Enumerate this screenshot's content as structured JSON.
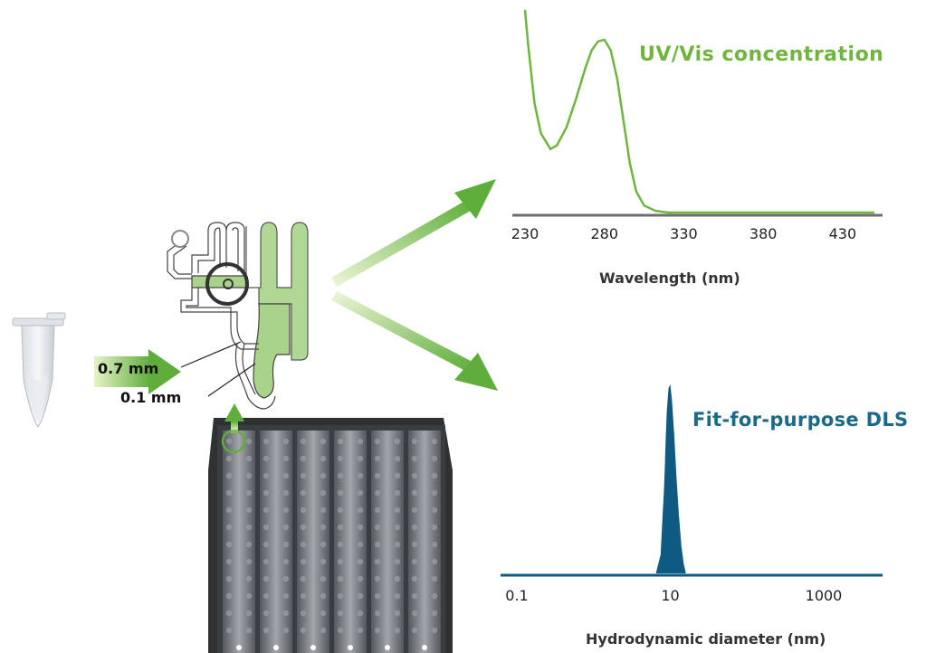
{
  "colors": {
    "green": "#6fb53f",
    "light_green": "#c9e59a",
    "blue": "#0e5a80",
    "axis": "#6e6e6e",
    "plate_dark": "#2f3133"
  },
  "chip": {
    "dim1": "0.7 mm",
    "dim2": "0.1 mm"
  },
  "chart_data": [
    {
      "type": "line",
      "title": "UV/Vis concentration",
      "xlabel": "Wavelength (nm)",
      "ylabel": "",
      "xlim": [
        230,
        450
      ],
      "x_ticks": [
        "230",
        "280",
        "330",
        "380",
        "430"
      ],
      "series": [
        {
          "x": [
            230,
            232,
            236,
            240,
            246,
            250,
            256,
            262,
            268,
            272,
            276,
            280,
            284,
            288,
            292,
            296,
            300,
            305,
            312,
            320,
            340,
            380,
            450
          ],
          "y": [
            1.15,
            0.95,
            0.62,
            0.45,
            0.36,
            0.38,
            0.48,
            0.64,
            0.82,
            0.92,
            0.97,
            0.98,
            0.92,
            0.76,
            0.52,
            0.28,
            0.12,
            0.04,
            0.01,
            0.0,
            0.0,
            0.0,
            0.0
          ]
        }
      ]
    },
    {
      "type": "area",
      "title": "Fit-for-purpose DLS",
      "xlabel": "Hydrodynamic diameter (nm)",
      "ylabel": "",
      "x_scale": "log",
      "xlim": [
        0.1,
        3000
      ],
      "x_ticks": [
        "0.1",
        "10",
        "1000"
      ],
      "series": [
        {
          "x": [
            6.5,
            7.5,
            8.3,
            9.0,
            9.5,
            10.0,
            10.5,
            11.2,
            12.0,
            13.0,
            14.0,
            15.0,
            16.0
          ],
          "y": [
            0.0,
            0.1,
            0.45,
            0.85,
            0.98,
            1.0,
            0.92,
            0.75,
            0.52,
            0.3,
            0.14,
            0.05,
            0.0
          ]
        }
      ]
    }
  ]
}
